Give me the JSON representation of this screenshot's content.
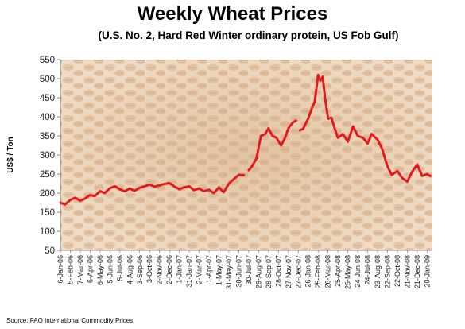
{
  "chart_data": {
    "type": "line",
    "title": "Weekly Wheat Prices",
    "subtitle": "(U.S.  No. 2, Hard Red Winter ordinary protein, US Fob Gulf)",
    "xlabel": "",
    "ylabel": "US$ / Ton",
    "ylim": [
      50,
      550
    ],
    "yticks": [
      50,
      100,
      150,
      200,
      250,
      300,
      350,
      400,
      450,
      500,
      550
    ],
    "grid": false,
    "legend": "none",
    "line_color": "#e41a1c",
    "xtick_labels": [
      "6-Jan-06",
      "5-Feb-06",
      "7-Mar-06",
      "6-Apr-06",
      "6-May-06",
      "5-Jun-06",
      "5-Jul-06",
      "4-Aug-06",
      "3-Sep-06",
      "3-Oct-06",
      "2-Nov-06",
      "2-Dec-06",
      "1-Jan-07",
      "31-Jan-07",
      "2-Mar-07",
      "1-Apr-07",
      "1-May-07",
      "31-May-07",
      "30-Jun-07",
      "30-Jul-07",
      "29-Aug-07",
      "28-Sep-07",
      "28-Oct-07",
      "27-Nov-07",
      "27-Dec-07",
      "26-Jan-08",
      "25-Feb-08",
      "26-Mar-08",
      "25-Apr-08",
      "25-May-08",
      "24-Jun-08",
      "24-Jul-08",
      "23-Aug-08",
      "22-Sep-08",
      "22-Oct-08",
      "21-Nov-08",
      "21-Dec-08",
      "20-Jan-09"
    ],
    "series": [
      {
        "name": "",
        "segments": [
          {
            "x": [
              "2006-01-06",
              "2006-01-20",
              "2006-02-05",
              "2006-02-20",
              "2006-03-07",
              "2006-03-20",
              "2006-04-06",
              "2006-04-20",
              "2006-05-06",
              "2006-05-20",
              "2006-06-05",
              "2006-06-20",
              "2006-07-05",
              "2006-07-20",
              "2006-08-04",
              "2006-08-18",
              "2006-09-03",
              "2006-09-17",
              "2006-10-03",
              "2006-10-17",
              "2006-11-02",
              "2006-11-16",
              "2006-12-02",
              "2006-12-16",
              "2007-01-01",
              "2007-01-15",
              "2007-01-31",
              "2007-02-14",
              "2007-03-02",
              "2007-03-16",
              "2007-04-01",
              "2007-04-15",
              "2007-05-01",
              "2007-05-15",
              "2007-05-31",
              "2007-06-14",
              "2007-06-30",
              "2007-07-15"
            ],
            "y": [
              175,
              170,
              182,
              188,
              180,
              185,
              195,
              192,
              205,
              200,
              213,
              218,
              210,
              205,
              212,
              206,
              214,
              218,
              222,
              217,
              220,
              224,
              226,
              218,
              210,
              215,
              218,
              208,
              212,
              205,
              209,
              200,
              215,
              202,
              225,
              236,
              248,
              247
            ]
          },
          {
            "x": [
              "2007-07-30",
              "2007-08-10",
              "2007-08-22",
              "2007-09-05",
              "2007-09-18",
              "2007-09-28",
              "2007-10-10",
              "2007-10-22",
              "2007-11-05",
              "2007-11-17",
              "2007-11-27",
              "2007-12-10",
              "2007-12-20"
            ],
            "y": [
              260,
              272,
              290,
              350,
              355,
              370,
              350,
              345,
              325,
              345,
              370,
              385,
              390
            ]
          },
          {
            "x": [
              "2008-01-01",
              "2008-01-10",
              "2008-01-26",
              "2008-02-05",
              "2008-02-15",
              "2008-02-25",
              "2008-03-03",
              "2008-03-10",
              "2008-03-17",
              "2008-03-26",
              "2008-04-05",
              "2008-04-15",
              "2008-04-25",
              "2008-05-10",
              "2008-05-25",
              "2008-06-10",
              "2008-06-24",
              "2008-07-10",
              "2008-07-24",
              "2008-08-05",
              "2008-08-23",
              "2008-09-05",
              "2008-09-22",
              "2008-10-05",
              "2008-10-22",
              "2008-11-05",
              "2008-11-21",
              "2008-12-05",
              "2008-12-21",
              "2009-01-05",
              "2009-01-20",
              "2009-01-30"
            ],
            "y": [
              365,
              368,
              395,
              420,
              440,
              510,
              495,
              505,
              450,
              395,
              398,
              370,
              345,
              355,
              335,
              375,
              350,
              345,
              330,
              355,
              340,
              318,
              270,
              248,
              258,
              240,
              230,
              255,
              275,
              245,
              250,
              245
            ]
          }
        ]
      }
    ]
  },
  "source_text": "Source: FAO International Commodity Prices"
}
